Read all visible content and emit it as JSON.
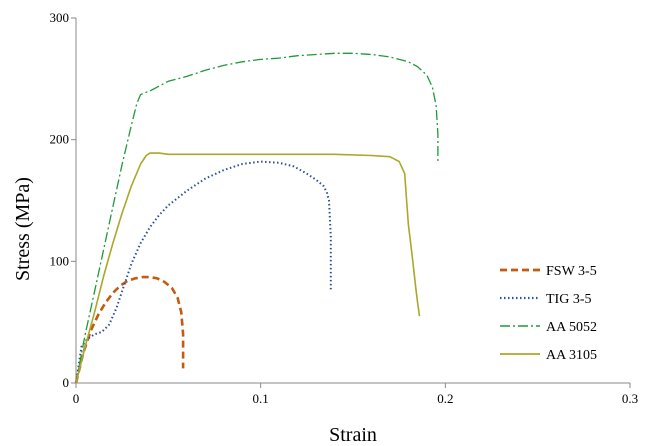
{
  "chart_data": {
    "type": "line",
    "xlabel": "Strain",
    "ylabel": "Stress (MPa)",
    "xlim": [
      0,
      0.3
    ],
    "ylim": [
      0,
      300
    ],
    "x_ticks": [
      "0",
      "0.1",
      "0.2",
      "0.3"
    ],
    "y_ticks": [
      "0",
      "100",
      "200",
      "300"
    ],
    "grid": false,
    "legend_position": "bottom-right",
    "series": [
      {
        "name": "FSW 3-5",
        "color": "#c55a11",
        "dash": "dashed",
        "x": [
          0,
          0.004,
          0.008,
          0.012,
          0.016,
          0.02,
          0.024,
          0.028,
          0.032,
          0.036,
          0.04,
          0.044,
          0.048,
          0.052,
          0.055,
          0.057,
          0.058,
          0.058
        ],
        "y": [
          0,
          25,
          43,
          56,
          66,
          74,
          80,
          84,
          86,
          87,
          87,
          86,
          83,
          78,
          70,
          58,
          40,
          12
        ]
      },
      {
        "name": "TIG  3-5",
        "color": "#2e4f9e",
        "dash": "dotted",
        "x": [
          0,
          0.003,
          0.006,
          0.01,
          0.014,
          0.018,
          0.022,
          0.026,
          0.03,
          0.035,
          0.04,
          0.045,
          0.05,
          0.06,
          0.07,
          0.08,
          0.09,
          0.1,
          0.11,
          0.118,
          0.125,
          0.13,
          0.134,
          0.136,
          0.137,
          0.138,
          0.138
        ],
        "y": [
          0,
          30,
          36,
          40,
          42,
          48,
          62,
          80,
          98,
          115,
          128,
          138,
          146,
          158,
          168,
          175,
          180,
          182,
          181,
          178,
          172,
          167,
          162,
          156,
          150,
          120,
          75
        ]
      },
      {
        "name": "AA 5052",
        "color": "#1e9a3a",
        "dash": "dashdot",
        "x": [
          0,
          0.005,
          0.01,
          0.015,
          0.02,
          0.025,
          0.03,
          0.033,
          0.035,
          0.038,
          0.04,
          0.045,
          0.05,
          0.06,
          0.07,
          0.08,
          0.09,
          0.1,
          0.11,
          0.12,
          0.13,
          0.14,
          0.15,
          0.16,
          0.17,
          0.18,
          0.185,
          0.19,
          0.193,
          0.195,
          0.196,
          0.196
        ],
        "y": [
          0,
          40,
          75,
          110,
          145,
          180,
          212,
          230,
          237,
          239,
          240,
          244,
          248,
          252,
          257,
          261,
          264,
          266,
          267,
          269,
          270,
          271,
          271,
          270,
          268,
          264,
          260,
          253,
          243,
          228,
          205,
          180
        ]
      },
      {
        "name": "AA 3105",
        "color": "#a9a82a",
        "dash": "solid",
        "x": [
          0,
          0.005,
          0.01,
          0.015,
          0.02,
          0.025,
          0.03,
          0.035,
          0.038,
          0.04,
          0.045,
          0.05,
          0.06,
          0.08,
          0.1,
          0.12,
          0.14,
          0.16,
          0.17,
          0.175,
          0.178,
          0.179,
          0.18,
          0.181,
          0.182,
          0.183,
          0.184,
          0.185,
          0.186
        ],
        "y": [
          0,
          30,
          58,
          88,
          115,
          140,
          162,
          180,
          187,
          189,
          189,
          188,
          188,
          188,
          188,
          188,
          188,
          187,
          186,
          182,
          172,
          150,
          130,
          118,
          105,
          92,
          78,
          66,
          55
        ]
      }
    ]
  }
}
